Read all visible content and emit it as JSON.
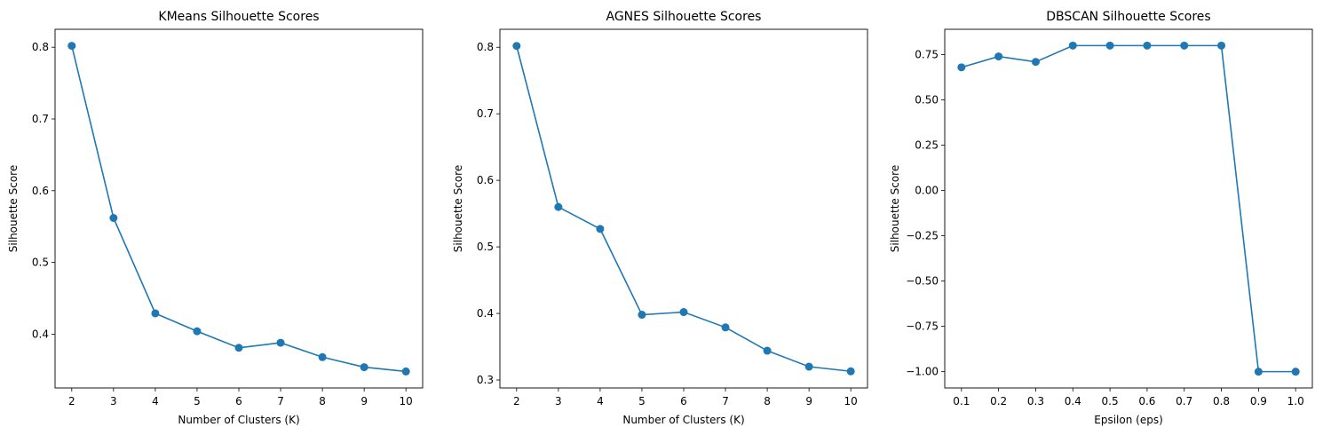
{
  "chart_data": [
    {
      "type": "line",
      "title": "KMeans Silhouette Scores",
      "xlabel": "Number of Clusters (K)",
      "ylabel": "Silhouette Score",
      "x": [
        2,
        3,
        4,
        5,
        6,
        7,
        8,
        9,
        10
      ],
      "xticks": [
        "2",
        "3",
        "4",
        "5",
        "6",
        "7",
        "8",
        "9",
        "10"
      ],
      "yticks": [
        0.4,
        0.5,
        0.6,
        0.7,
        0.8
      ],
      "ytick_labels": [
        "0.4",
        "0.5",
        "0.6",
        "0.7",
        "0.8"
      ],
      "xlim": [
        1.6,
        10.4
      ],
      "ylim": [
        0.325,
        0.825
      ],
      "grid": false,
      "series": [
        {
          "values": [
            0.802,
            0.562,
            0.429,
            0.404,
            0.381,
            0.388,
            0.368,
            0.354,
            0.348
          ],
          "color": "#1f77b4",
          "marker": "circle"
        }
      ]
    },
    {
      "type": "line",
      "title": "AGNES Silhouette Scores",
      "xlabel": "Number of Clusters (K)",
      "ylabel": "Silhouette Score",
      "x": [
        2,
        3,
        4,
        5,
        6,
        7,
        8,
        9,
        10
      ],
      "xticks": [
        "2",
        "3",
        "4",
        "5",
        "6",
        "7",
        "8",
        "9",
        "10"
      ],
      "yticks": [
        0.3,
        0.4,
        0.5,
        0.6,
        0.7,
        0.8
      ],
      "ytick_labels": [
        "0.3",
        "0.4",
        "0.5",
        "0.6",
        "0.7",
        "0.8"
      ],
      "xlim": [
        1.6,
        10.4
      ],
      "ylim": [
        0.288,
        0.827
      ],
      "grid": false,
      "series": [
        {
          "values": [
            0.802,
            0.56,
            0.527,
            0.398,
            0.402,
            0.379,
            0.344,
            0.32,
            0.313
          ],
          "color": "#1f77b4",
          "marker": "circle"
        }
      ]
    },
    {
      "type": "line",
      "title": "DBSCAN Silhouette Scores",
      "xlabel": "Epsilon (eps)",
      "ylabel": "Silhouette Score",
      "x": [
        0.1,
        0.2,
        0.3,
        0.4,
        0.5,
        0.6,
        0.7,
        0.8,
        0.9,
        1.0
      ],
      "xticks": [
        "0.1",
        "0.2",
        "0.3",
        "0.4",
        "0.5",
        "0.6",
        "0.7",
        "0.8",
        "0.9",
        "1.0"
      ],
      "yticks": [
        -1.0,
        -0.75,
        -0.5,
        -0.25,
        0.0,
        0.25,
        0.5,
        0.75
      ],
      "ytick_labels": [
        "−1.00",
        "−0.75",
        "−0.50",
        "−0.25",
        "0.00",
        "0.25",
        "0.50",
        "0.75"
      ],
      "xlim": [
        0.055,
        1.045
      ],
      "ylim": [
        -1.09,
        0.89
      ],
      "grid": false,
      "series": [
        {
          "values": [
            0.68,
            0.74,
            0.71,
            0.8,
            0.8,
            0.8,
            0.8,
            0.8,
            -1.0,
            -1.0
          ],
          "color": "#1f77b4",
          "marker": "circle"
        }
      ]
    }
  ]
}
